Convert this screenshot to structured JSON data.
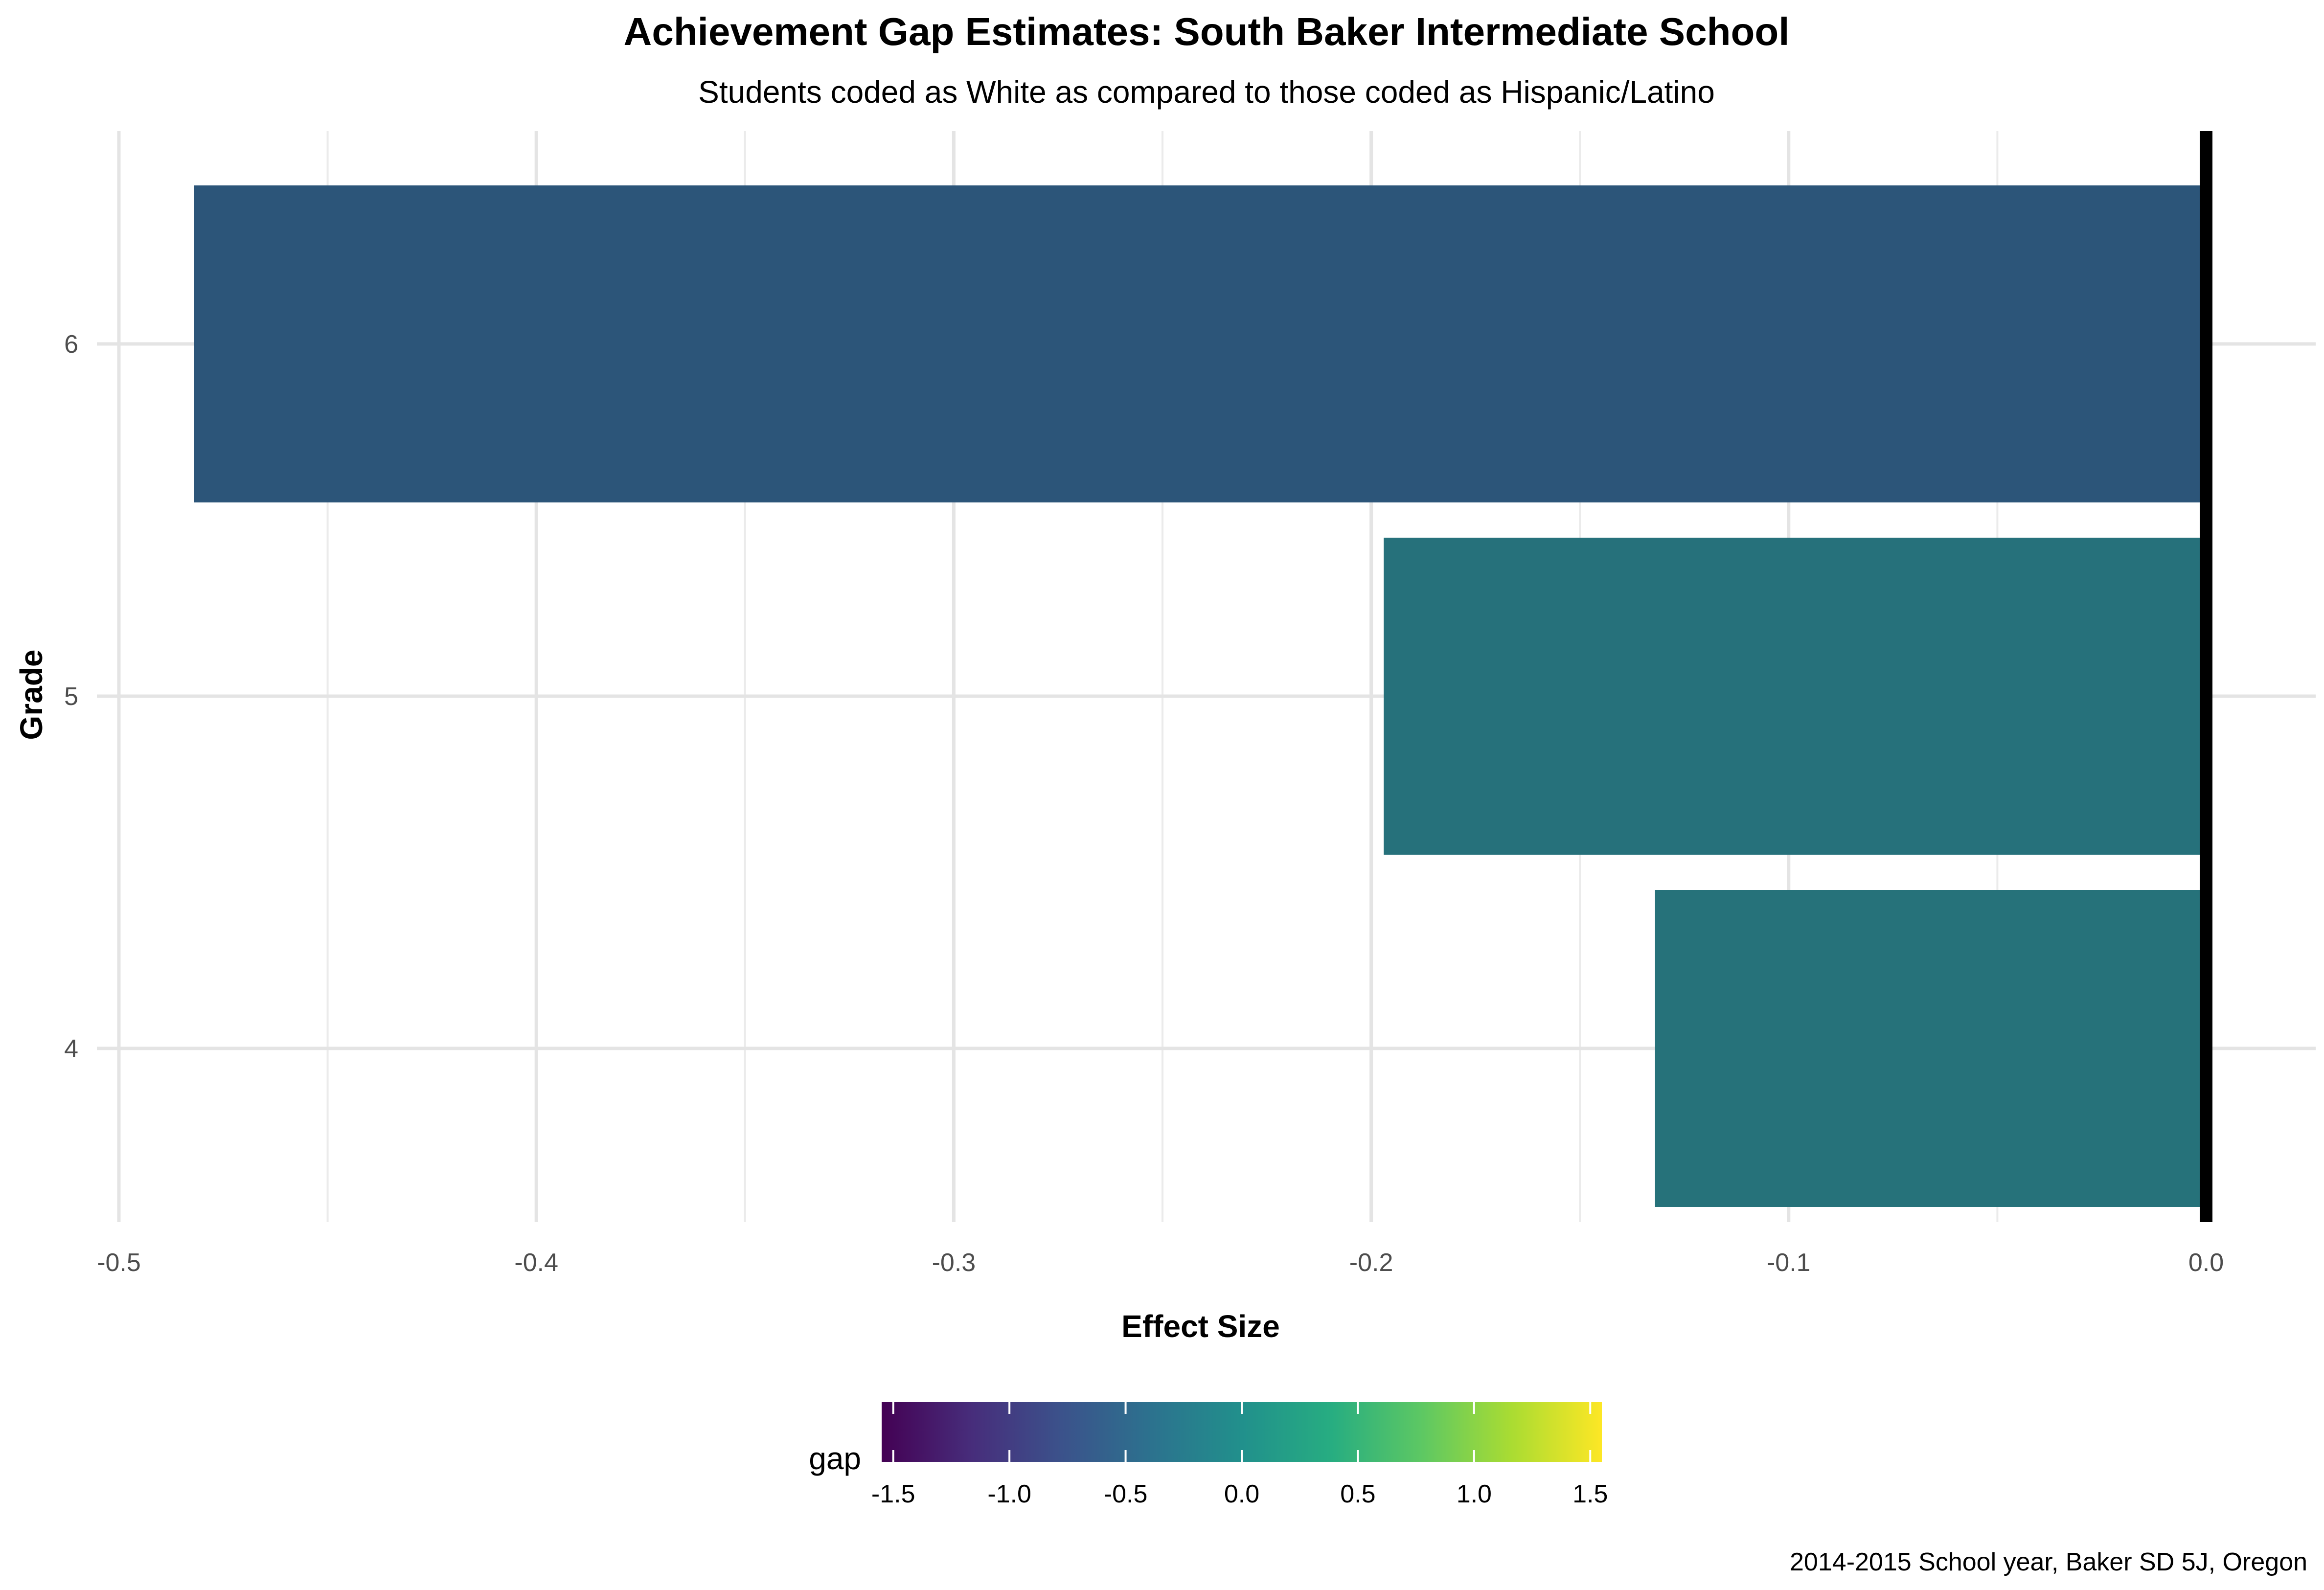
{
  "chart_data": {
    "type": "bar",
    "orientation": "horizontal",
    "title": "Achievement Gap Estimates: South Baker Intermediate School",
    "subtitle": "Students coded as White as compared to those coded as Hispanic/Latino",
    "xlabel": "Effect Size",
    "ylabel": "Grade",
    "caption": "2014-2015 School year, Baker SD 5J, Oregon",
    "categories": [
      "4",
      "5",
      "6"
    ],
    "values": [
      -0.132,
      -0.197,
      -0.482
    ],
    "bar_colors": [
      "#26727A",
      "#26717B",
      "#2C5579"
    ],
    "xlim": [
      -0.5,
      0.0
    ],
    "x_ticks": [
      -0.5,
      -0.4,
      -0.3,
      -0.2,
      -0.1,
      0.0
    ],
    "x_tick_labels": [
      "-0.5",
      "-0.4",
      "-0.3",
      "-0.2",
      "-0.1",
      "0.0"
    ],
    "grid": true,
    "reference_line": 0.0,
    "reference_line_color": "#000000",
    "legend": {
      "title": "gap",
      "type": "colorbar",
      "position": "bottom",
      "palette": "viridis",
      "range": [
        -1.55,
        1.55
      ],
      "ticks": [
        -1.5,
        -1.0,
        -0.5,
        0.0,
        0.5,
        1.0,
        1.5
      ],
      "tick_labels": [
        "-1.5",
        "-1.0",
        "-0.5",
        "0.0",
        "0.5",
        "1.0",
        "1.5"
      ]
    }
  }
}
